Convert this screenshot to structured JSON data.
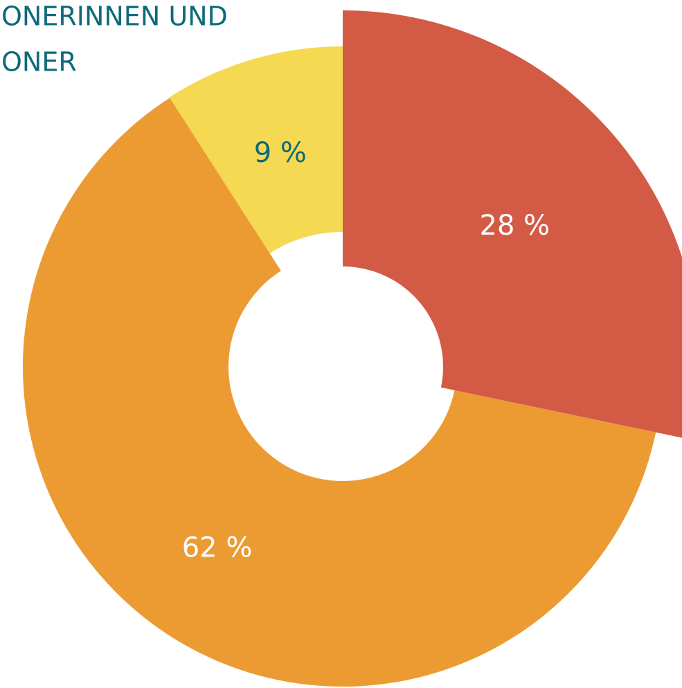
{
  "chart_data": {
    "type": "donut",
    "title_lines": [
      "ONERINNEN UND",
      "ONER"
    ],
    "categories": [
      null,
      null,
      null
    ],
    "values": [
      28,
      62,
      9
    ],
    "value_labels": [
      "28 %",
      "62 %",
      "9 %"
    ],
    "colors": [
      "#d35b45",
      "#ec9b33",
      "#f5d952"
    ],
    "label_colors": [
      "#ffffff",
      "#ffffff",
      "#0d6a7a"
    ],
    "title_color": "#0d6a7a"
  }
}
